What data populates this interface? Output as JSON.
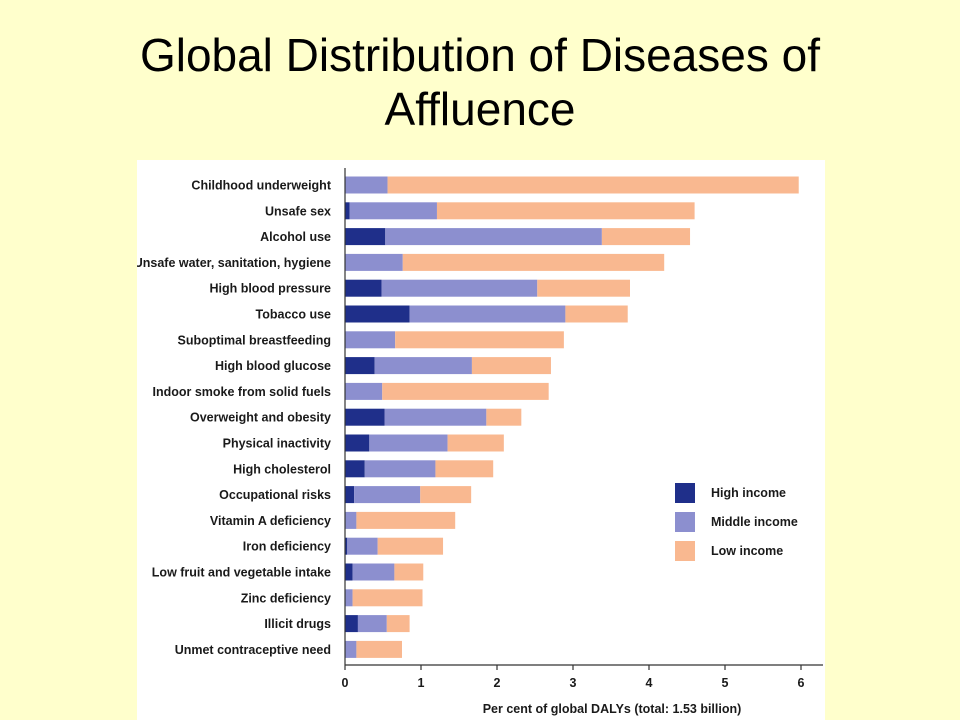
{
  "slide": {
    "title_line1": "Global Distribution of Diseases of",
    "title_line2": "Affluence"
  },
  "chart_data": {
    "type": "bar",
    "orientation": "horizontal",
    "stacked": true,
    "title": "",
    "xlabel": "Per cent of global DALYs (total: 1.53 billion)",
    "ylabel": "",
    "xlim": [
      0,
      6.2
    ],
    "xticks": [
      0,
      1,
      2,
      3,
      4,
      5,
      6
    ],
    "grid": false,
    "legend_position": "right",
    "categories": [
      "Childhood underweight",
      "Unsafe sex",
      "Alcohol use",
      "Unsafe water, sanitation, hygiene",
      "High blood pressure",
      "Tobacco use",
      "Suboptimal breastfeeding",
      "High blood glucose",
      "Indoor smoke from solid fuels",
      "Overweight and obesity",
      "Physical inactivity",
      "High cholesterol",
      "Occupational risks",
      "Vitamin A deficiency",
      "Iron deficiency",
      "Low fruit and vegetable intake",
      "Zinc deficiency",
      "Illicit drugs",
      "Unmet contraceptive need"
    ],
    "series": [
      {
        "name": "High income",
        "color": "#1f2f8a",
        "values": [
          0.0,
          0.06,
          0.53,
          0.0,
          0.48,
          0.85,
          0.0,
          0.39,
          0.0,
          0.52,
          0.32,
          0.26,
          0.12,
          0.0,
          0.03,
          0.1,
          0.0,
          0.17,
          0.0
        ]
      },
      {
        "name": "Middle income",
        "color": "#8c8fcf",
        "values": [
          0.56,
          1.15,
          2.85,
          0.76,
          2.05,
          2.05,
          0.66,
          1.28,
          0.49,
          1.34,
          1.03,
          0.93,
          0.87,
          0.15,
          0.4,
          0.55,
          0.1,
          0.38,
          0.15
        ]
      },
      {
        "name": "Low income",
        "color": "#f9b890",
        "values": [
          5.41,
          3.39,
          1.16,
          3.44,
          1.22,
          0.82,
          2.22,
          1.04,
          2.19,
          0.46,
          0.74,
          0.76,
          0.67,
          1.3,
          0.86,
          0.38,
          0.92,
          0.3,
          0.6
        ]
      }
    ]
  }
}
